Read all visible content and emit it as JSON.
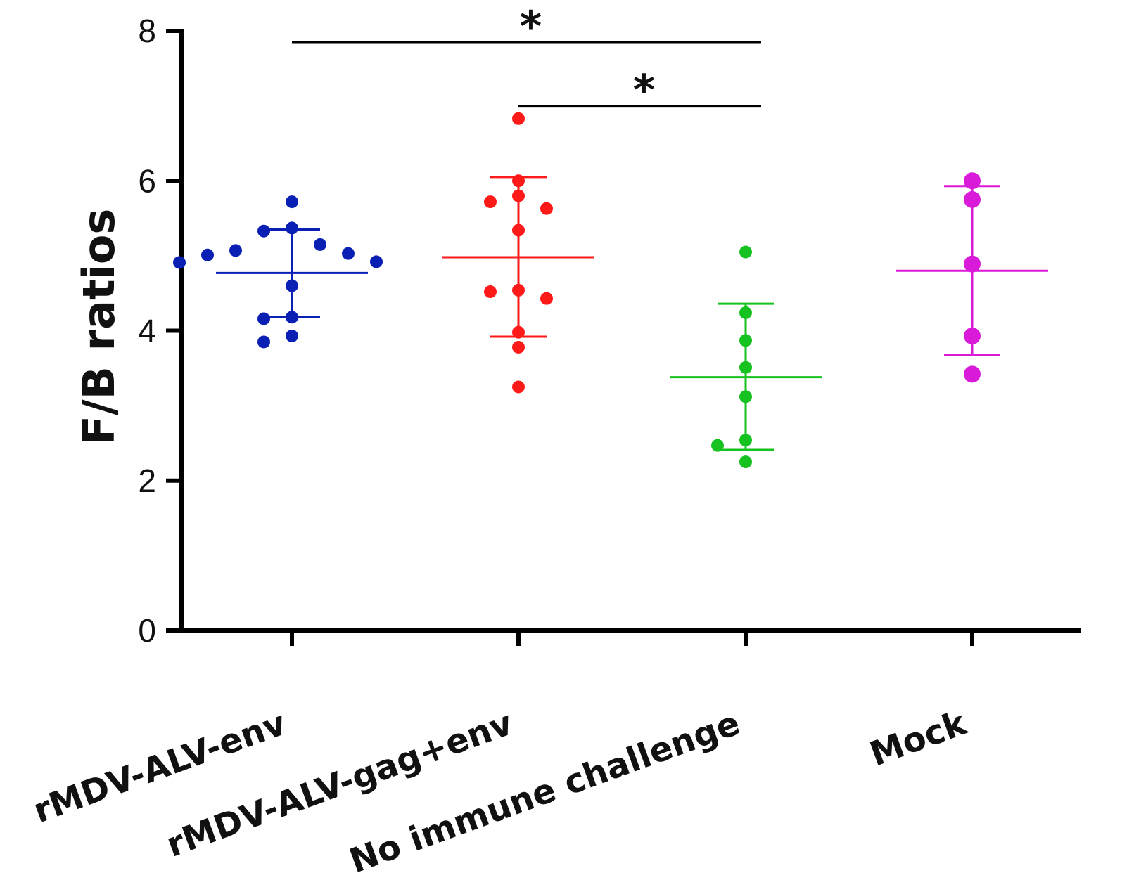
{
  "chart_data": {
    "type": "scatter",
    "title": "",
    "xlabel": "",
    "ylabel": "F/B ratios",
    "ylim": [
      0,
      8
    ],
    "yticks": [
      "0",
      "2",
      "4",
      "6",
      "8"
    ],
    "grid": false,
    "categories": [
      "rMDV-ALV-env",
      "rMDV-ALV-gag+env",
      "No immune challenge",
      "Mock"
    ],
    "series": [
      {
        "name": "rMDV-ALV-env",
        "color": "#0a1fb4",
        "mean": 4.77,
        "sd_low": 4.18,
        "sd_high": 5.35,
        "points": [
          5.72,
          5.37,
          5.33,
          5.15,
          5.07,
          5.03,
          5.01,
          4.92,
          4.91,
          4.6,
          4.18,
          4.16,
          3.93,
          3.85
        ]
      },
      {
        "name": "rMDV-ALV-gag+env",
        "color": "#ff1a1a",
        "mean": 4.98,
        "sd_low": 3.92,
        "sd_high": 6.05,
        "points": [
          6.83,
          6.0,
          5.8,
          5.72,
          5.63,
          5.34,
          4.54,
          4.52,
          4.43,
          3.98,
          3.78,
          3.25
        ]
      },
      {
        "name": "No immune challenge",
        "color": "#16c21f",
        "mean": 3.38,
        "sd_low": 2.41,
        "sd_high": 4.36,
        "points": [
          5.05,
          4.24,
          3.87,
          3.51,
          3.12,
          2.54,
          2.47,
          2.25
        ]
      },
      {
        "name": "Mock",
        "color": "#d91ad9",
        "mean": 4.8,
        "sd_low": 3.68,
        "sd_high": 5.93,
        "points": [
          6.0,
          5.75,
          4.89,
          3.93,
          3.42
        ]
      }
    ],
    "significance": [
      {
        "from": "rMDV-ALV-env",
        "to": "No immune challenge",
        "y": 7.85,
        "label": "*"
      },
      {
        "from": "rMDV-ALV-gag+env",
        "to": "No immune challenge",
        "y": 7.0,
        "label": "*"
      }
    ]
  }
}
